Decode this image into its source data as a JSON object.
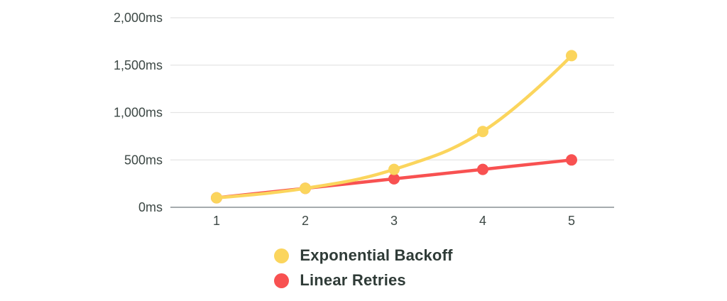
{
  "chart_data": {
    "type": "line",
    "x": [
      1,
      2,
      3,
      4,
      5
    ],
    "x_ticks": [
      "1",
      "2",
      "3",
      "4",
      "5"
    ],
    "series": [
      {
        "name": "Exponential Backoff",
        "color": "#FBD55D",
        "values": [
          100,
          200,
          400,
          800,
          1600
        ]
      },
      {
        "name": "Linear Retries",
        "color": "#F85151",
        "values": [
          100,
          200,
          300,
          400,
          500
        ]
      }
    ],
    "y_ticks": [
      {
        "label": "2,000ms",
        "value": 2000
      },
      {
        "label": "1,500ms",
        "value": 1500
      },
      {
        "label": "1,000ms",
        "value": 1000
      },
      {
        "label": "500ms",
        "value": 500
      },
      {
        "label": "0ms",
        "value": 0
      }
    ],
    "ylim": [
      0,
      2000
    ],
    "unit": "ms",
    "title": "",
    "grid": true,
    "legend_position": "bottom",
    "colors": {
      "gridline": "#E4E4E4",
      "axis_line": "#A6ABAE",
      "tick_text": "#3D4845",
      "legend_text": "#2F3B37",
      "background": "#FFFFFF"
    }
  }
}
